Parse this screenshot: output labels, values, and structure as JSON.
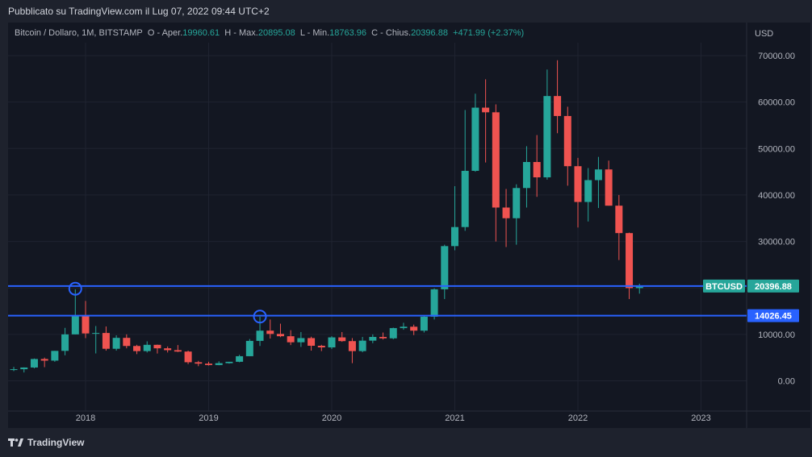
{
  "header": {
    "published": "Pubblicato su TradingView.com il Lug 07, 2022 09:44 UTC+2"
  },
  "legend": {
    "symbol": "Bitcoin / Dollaro, 1M, BITSTAMP",
    "o_label": "O - Aper.",
    "o_value": "19960.61",
    "h_label": "H - Max.",
    "h_value": "20895.08",
    "l_label": "L - Min.",
    "l_value": "18763.96",
    "c_label": "C - Chius.",
    "c_value": "20396.88",
    "change": "+471.99 (+2.37%)"
  },
  "footer": {
    "brand": "TradingView"
  },
  "colors": {
    "up": "#26a69a",
    "down": "#ef5350",
    "line": "#2962ff",
    "background": "#131722",
    "grid": "#1f2330"
  },
  "chart_data": {
    "type": "candlestick",
    "currency": "USD",
    "y_ticks": [
      "70000.00",
      "60000.00",
      "50000.00",
      "40000.00",
      "30000.00",
      "20000.00",
      "10000.00",
      "0.00"
    ],
    "x_ticks": [
      "2018",
      "2019",
      "2020",
      "2021",
      "2022",
      "2023"
    ],
    "ylim": [
      -4000,
      73500
    ],
    "grid": true,
    "horizontal_lines": [
      {
        "value": 20396.88,
        "label": "20396.88",
        "tag": "BTCUSD"
      },
      {
        "value": 14026.45,
        "label": "14026.45"
      }
    ],
    "circles": [
      {
        "date": "2017-12",
        "value": 20000
      },
      {
        "date": "2019-06",
        "value": 14000
      }
    ],
    "candles": [
      {
        "d": "2017-06",
        "o": 2450,
        "h": 3000,
        "l": 2100,
        "c": 2500
      },
      {
        "d": "2017-07",
        "o": 2500,
        "h": 2900,
        "l": 1800,
        "c": 2870
      },
      {
        "d": "2017-08",
        "o": 2870,
        "h": 4800,
        "l": 2700,
        "c": 4700
      },
      {
        "d": "2017-09",
        "o": 4700,
        "h": 5000,
        "l": 2950,
        "c": 4350
      },
      {
        "d": "2017-10",
        "o": 4350,
        "h": 6450,
        "l": 4100,
        "c": 6450
      },
      {
        "d": "2017-11",
        "o": 6450,
        "h": 11400,
        "l": 5500,
        "c": 10000
      },
      {
        "d": "2017-12",
        "o": 10000,
        "h": 19700,
        "l": 10000,
        "c": 14000
      },
      {
        "d": "2018-01",
        "o": 14000,
        "h": 17200,
        "l": 9200,
        "c": 10200
      },
      {
        "d": "2018-02",
        "o": 10200,
        "h": 11800,
        "l": 5900,
        "c": 10300
      },
      {
        "d": "2018-03",
        "o": 10300,
        "h": 11700,
        "l": 6500,
        "c": 6900
      },
      {
        "d": "2018-04",
        "o": 6900,
        "h": 9800,
        "l": 6500,
        "c": 9250
      },
      {
        "d": "2018-05",
        "o": 9250,
        "h": 10000,
        "l": 7000,
        "c": 7500
      },
      {
        "d": "2018-06",
        "o": 7500,
        "h": 7750,
        "l": 5750,
        "c": 6400
      },
      {
        "d": "2018-07",
        "o": 6400,
        "h": 8500,
        "l": 6100,
        "c": 7750
      },
      {
        "d": "2018-08",
        "o": 7750,
        "h": 7800,
        "l": 5880,
        "c": 7000
      },
      {
        "d": "2018-09",
        "o": 7000,
        "h": 7400,
        "l": 6100,
        "c": 6600
      },
      {
        "d": "2018-10",
        "o": 6600,
        "h": 7700,
        "l": 6200,
        "c": 6300
      },
      {
        "d": "2018-11",
        "o": 6300,
        "h": 6500,
        "l": 3600,
        "c": 4000
      },
      {
        "d": "2018-12",
        "o": 4000,
        "h": 4300,
        "l": 3150,
        "c": 3700
      },
      {
        "d": "2019-01",
        "o": 3700,
        "h": 4100,
        "l": 3300,
        "c": 3400
      },
      {
        "d": "2019-02",
        "o": 3400,
        "h": 4200,
        "l": 3350,
        "c": 3800
      },
      {
        "d": "2019-03",
        "o": 3800,
        "h": 4100,
        "l": 3700,
        "c": 4100
      },
      {
        "d": "2019-04",
        "o": 4100,
        "h": 5600,
        "l": 4000,
        "c": 5300
      },
      {
        "d": "2019-05",
        "o": 5300,
        "h": 9000,
        "l": 5300,
        "c": 8600
      },
      {
        "d": "2019-06",
        "o": 8600,
        "h": 13800,
        "l": 7500,
        "c": 10800
      },
      {
        "d": "2019-07",
        "o": 10800,
        "h": 13200,
        "l": 9100,
        "c": 10100
      },
      {
        "d": "2019-08",
        "o": 10100,
        "h": 12300,
        "l": 9400,
        "c": 9600
      },
      {
        "d": "2019-09",
        "o": 9600,
        "h": 10900,
        "l": 7700,
        "c": 8300
      },
      {
        "d": "2019-10",
        "o": 8300,
        "h": 10500,
        "l": 7300,
        "c": 9200
      },
      {
        "d": "2019-11",
        "o": 9200,
        "h": 9500,
        "l": 6500,
        "c": 7550
      },
      {
        "d": "2019-12",
        "o": 7550,
        "h": 7750,
        "l": 6400,
        "c": 7200
      },
      {
        "d": "2020-01",
        "o": 7200,
        "h": 9600,
        "l": 6850,
        "c": 9350
      },
      {
        "d": "2020-02",
        "o": 9350,
        "h": 10500,
        "l": 8400,
        "c": 8550
      },
      {
        "d": "2020-03",
        "o": 8550,
        "h": 9200,
        "l": 3800,
        "c": 6400
      },
      {
        "d": "2020-04",
        "o": 6400,
        "h": 9450,
        "l": 6150,
        "c": 8650
      },
      {
        "d": "2020-05",
        "o": 8650,
        "h": 10000,
        "l": 8100,
        "c": 9450
      },
      {
        "d": "2020-06",
        "o": 9450,
        "h": 10400,
        "l": 8900,
        "c": 9150
      },
      {
        "d": "2020-07",
        "o": 9150,
        "h": 11450,
        "l": 8950,
        "c": 11350
      },
      {
        "d": "2020-08",
        "o": 11350,
        "h": 12500,
        "l": 11000,
        "c": 11650
      },
      {
        "d": "2020-09",
        "o": 11650,
        "h": 12100,
        "l": 9850,
        "c": 10800
      },
      {
        "d": "2020-10",
        "o": 10800,
        "h": 14100,
        "l": 10400,
        "c": 13800
      },
      {
        "d": "2020-11",
        "o": 13800,
        "h": 19900,
        "l": 13200,
        "c": 19700
      },
      {
        "d": "2020-12",
        "o": 19700,
        "h": 29300,
        "l": 17600,
        "c": 29000
      },
      {
        "d": "2021-01",
        "o": 29000,
        "h": 41900,
        "l": 28100,
        "c": 33100
      },
      {
        "d": "2021-02",
        "o": 33100,
        "h": 58300,
        "l": 32300,
        "c": 45200
      },
      {
        "d": "2021-03",
        "o": 45200,
        "h": 61800,
        "l": 45000,
        "c": 58800
      },
      {
        "d": "2021-04",
        "o": 58800,
        "h": 64900,
        "l": 47000,
        "c": 57800
      },
      {
        "d": "2021-05",
        "o": 57800,
        "h": 59500,
        "l": 30000,
        "c": 37300
      },
      {
        "d": "2021-06",
        "o": 37300,
        "h": 41300,
        "l": 28800,
        "c": 35000
      },
      {
        "d": "2021-07",
        "o": 35000,
        "h": 42300,
        "l": 29300,
        "c": 41500
      },
      {
        "d": "2021-08",
        "o": 41500,
        "h": 50500,
        "l": 37300,
        "c": 47100
      },
      {
        "d": "2021-09",
        "o": 47100,
        "h": 52900,
        "l": 39600,
        "c": 43800
      },
      {
        "d": "2021-10",
        "o": 43800,
        "h": 67000,
        "l": 43300,
        "c": 61300
      },
      {
        "d": "2021-11",
        "o": 61300,
        "h": 69000,
        "l": 53300,
        "c": 57000
      },
      {
        "d": "2021-12",
        "o": 57000,
        "h": 59000,
        "l": 42000,
        "c": 46200
      },
      {
        "d": "2022-01",
        "o": 46200,
        "h": 48000,
        "l": 33000,
        "c": 38500
      },
      {
        "d": "2022-02",
        "o": 38500,
        "h": 45800,
        "l": 34300,
        "c": 43200
      },
      {
        "d": "2022-03",
        "o": 43200,
        "h": 48200,
        "l": 37200,
        "c": 45500
      },
      {
        "d": "2022-04",
        "o": 45500,
        "h": 47400,
        "l": 37700,
        "c": 37700
      },
      {
        "d": "2022-05",
        "o": 37700,
        "h": 40000,
        "l": 26000,
        "c": 31800
      },
      {
        "d": "2022-06",
        "o": 31800,
        "h": 31900,
        "l": 17600,
        "c": 19960
      },
      {
        "d": "2022-07",
        "o": 19960.61,
        "h": 20895.08,
        "l": 18763.96,
        "c": 20396.88
      }
    ]
  }
}
